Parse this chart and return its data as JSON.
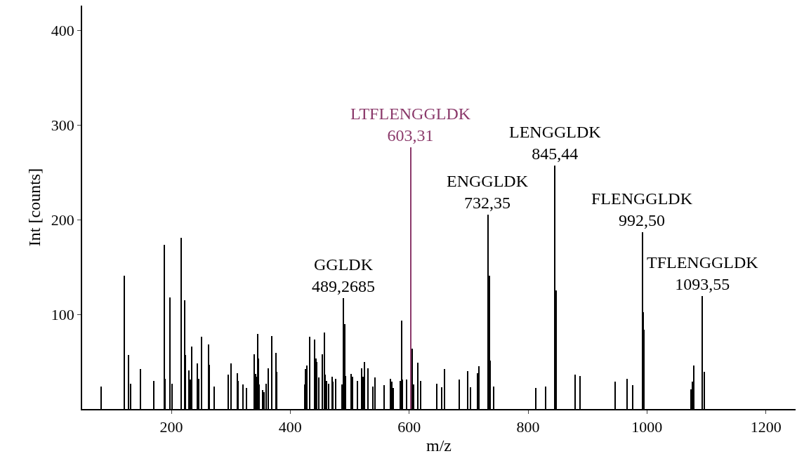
{
  "chart_data": {
    "type": "bar",
    "xlabel": "m/z",
    "ylabel": "Int [counts]",
    "x": [
      82,
      121,
      128,
      131,
      148,
      171,
      188,
      190,
      198,
      201,
      216,
      222,
      224,
      230,
      232,
      234,
      244,
      246,
      251,
      263,
      264,
      272,
      296,
      300,
      311,
      312,
      320,
      327,
      340,
      342,
      343,
      345,
      347,
      348,
      354,
      356,
      359,
      363,
      369,
      376,
      377,
      424,
      426,
      428,
      433,
      441,
      443,
      444,
      448,
      454,
      458,
      459,
      461,
      465,
      470,
      472,
      476,
      487,
      489.27,
      492,
      493,
      502,
      505,
      513,
      520,
      523,
      525,
      531,
      539,
      543,
      558,
      569,
      571,
      573,
      585,
      587,
      589,
      596,
      605,
      607,
      615,
      619,
      647,
      655,
      659,
      684,
      698,
      703,
      715,
      717,
      732.35,
      735,
      736,
      742,
      813,
      830,
      845.44,
      847,
      879,
      887,
      946,
      967,
      976,
      992.5,
      994,
      995,
      1074,
      1077,
      1079,
      1093.55,
      1096
    ],
    "series": [
      {
        "color": "#000000",
        "values": [
          24,
          141,
          57,
          27,
          42,
          30,
          173,
          32,
          118,
          27,
          181,
          115,
          57,
          41,
          31,
          66,
          48,
          32,
          76,
          68,
          47,
          24,
          36,
          48,
          38,
          30,
          26,
          22,
          58,
          37,
          34,
          79,
          53,
          26,
          20,
          18,
          27,
          43,
          77,
          59,
          39,
          26,
          42,
          46,
          76,
          73,
          53,
          50,
          33,
          58,
          81,
          36,
          30,
          27,
          34,
          29,
          32,
          26,
          117,
          90,
          35,
          37,
          34,
          30,
          43,
          34,
          50,
          43,
          24,
          33,
          25,
          32,
          29,
          22,
          30,
          93,
          31,
          31,
          64,
          26,
          49,
          30,
          27,
          23,
          42,
          31,
          40,
          23,
          38,
          45,
          205,
          141,
          51,
          24,
          22,
          24,
          257,
          125,
          36,
          35,
          29,
          32,
          25,
          187,
          102,
          84,
          21,
          29,
          46,
          119,
          39
        ]
      },
      {
        "color": "#8b3a6b",
        "x": [
          603.31
        ],
        "values": [
          276
        ]
      }
    ],
    "xlim": [
      50,
      1250
    ],
    "xticks": [
      200,
      400,
      600,
      800,
      1000,
      1200
    ],
    "ylim": [
      0,
      426
    ],
    "yticks": [
      100,
      200,
      300,
      400
    ],
    "annotations": [
      {
        "text": "GGLDK\n489,2685",
        "x": 489.27,
        "y": 117
      },
      {
        "text": "LTFLENGGLDK\n603,31",
        "x": 603.31,
        "y": 276
      },
      {
        "text": "ENGGLDK\n732,35",
        "x": 732.35,
        "y": 205
      },
      {
        "text": "LENGGLDK\n845,44",
        "x": 845.44,
        "y": 257
      },
      {
        "text": "FLENGGLDK\n992,50",
        "x": 992.5,
        "y": 187
      },
      {
        "text": "TFLENGGLDK\n1093,55",
        "x": 1093.55,
        "y": 119
      }
    ]
  }
}
